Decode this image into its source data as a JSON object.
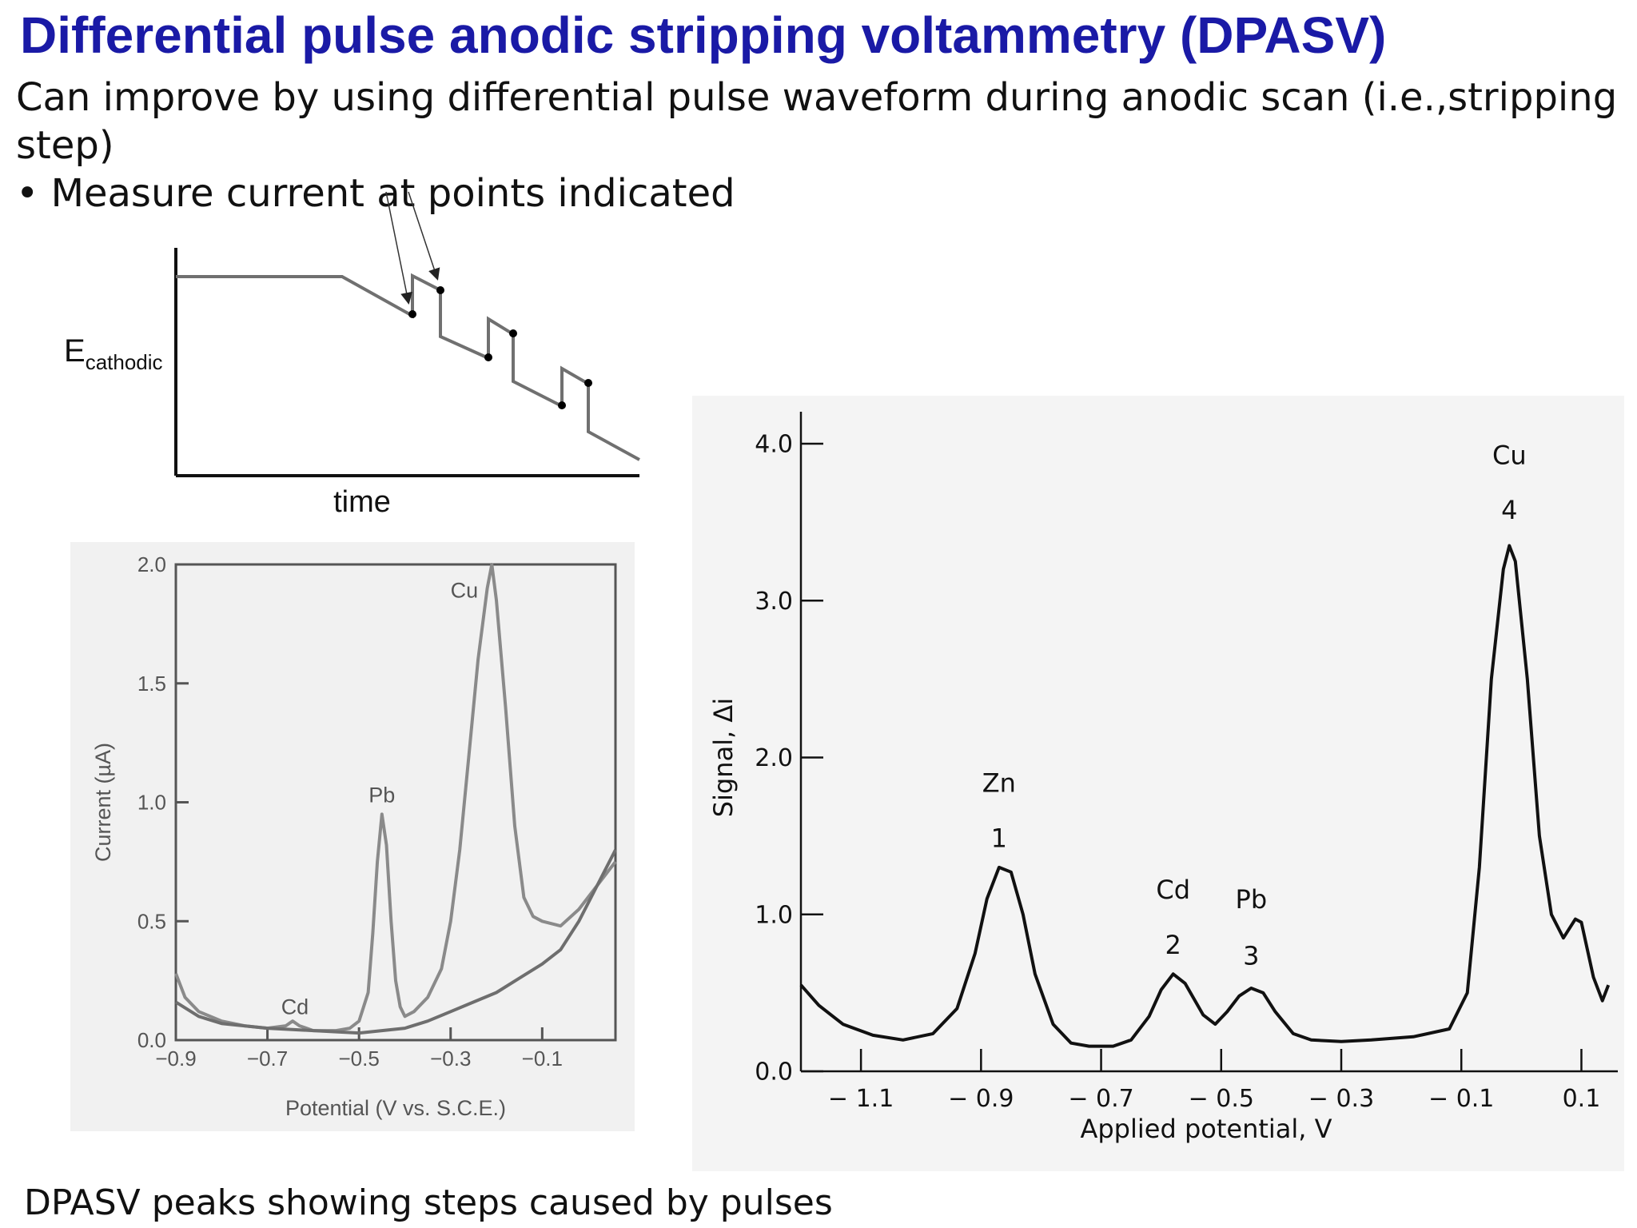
{
  "slide": {
    "title": "Differential pulse anodic stripping voltammetry (DPASV)",
    "intro": "Can improve by using differential pulse waveform during anodic scan (i.e.,stripping step)",
    "bullet": "• Measure current at points indicated",
    "caption": "DPASV peaks showing steps caused by pulses"
  },
  "waveform": {
    "ylabel_main": "E",
    "ylabel_sub": "cathodic",
    "xlabel": "time"
  },
  "chart_data": [
    {
      "type": "line",
      "ylabel": "Current (µA)",
      "xlabel": "Potential (V vs. S.C.E.)",
      "xlim": [
        -0.9,
        0.06
      ],
      "ylim": [
        0,
        2.0
      ],
      "xticks": [
        -0.9,
        -0.7,
        -0.5,
        -0.3,
        -0.1
      ],
      "xtick_labels": [
        "−0.9",
        "−0.7",
        "−0.5",
        "−0.3",
        "−0.1"
      ],
      "yticks": [
        0,
        0.5,
        1.0,
        1.5,
        2.0
      ],
      "ytick_labels": [
        "0.0",
        "0.5",
        "1.0",
        "1.5",
        "2.0"
      ],
      "grid": false,
      "series": [
        {
          "values": [
            [
              -0.9,
              0.28
            ],
            [
              -0.88,
              0.18
            ],
            [
              -0.85,
              0.12
            ],
            [
              -0.8,
              0.08
            ],
            [
              -0.75,
              0.06
            ],
            [
              -0.7,
              0.05
            ],
            [
              -0.66,
              0.06
            ],
            [
              -0.645,
              0.08
            ],
            [
              -0.63,
              0.06
            ],
            [
              -0.6,
              0.04
            ],
            [
              -0.55,
              0.04
            ],
            [
              -0.52,
              0.05
            ],
            [
              -0.5,
              0.08
            ],
            [
              -0.48,
              0.2
            ],
            [
              -0.47,
              0.45
            ],
            [
              -0.46,
              0.75
            ],
            [
              -0.45,
              0.95
            ],
            [
              -0.44,
              0.82
            ],
            [
              -0.43,
              0.5
            ],
            [
              -0.42,
              0.25
            ],
            [
              -0.41,
              0.14
            ],
            [
              -0.4,
              0.1
            ],
            [
              -0.38,
              0.12
            ],
            [
              -0.35,
              0.18
            ],
            [
              -0.32,
              0.3
            ],
            [
              -0.3,
              0.5
            ],
            [
              -0.28,
              0.8
            ],
            [
              -0.26,
              1.2
            ],
            [
              -0.24,
              1.6
            ],
            [
              -0.22,
              1.9
            ],
            [
              -0.21,
              2.0
            ],
            [
              -0.2,
              1.85
            ],
            [
              -0.18,
              1.4
            ],
            [
              -0.16,
              0.9
            ],
            [
              -0.14,
              0.6
            ],
            [
              -0.12,
              0.52
            ],
            [
              -0.1,
              0.5
            ],
            [
              -0.06,
              0.48
            ],
            [
              -0.02,
              0.55
            ],
            [
              0.02,
              0.65
            ],
            [
              0.06,
              0.75
            ]
          ]
        },
        {
          "values": [
            [
              -0.9,
              0.16
            ],
            [
              -0.85,
              0.1
            ],
            [
              -0.8,
              0.07
            ],
            [
              -0.7,
              0.05
            ],
            [
              -0.6,
              0.04
            ],
            [
              -0.5,
              0.03
            ],
            [
              -0.45,
              0.04
            ],
            [
              -0.4,
              0.05
            ],
            [
              -0.35,
              0.08
            ],
            [
              -0.3,
              0.12
            ],
            [
              -0.25,
              0.16
            ],
            [
              -0.2,
              0.2
            ],
            [
              -0.15,
              0.26
            ],
            [
              -0.1,
              0.32
            ],
            [
              -0.06,
              0.38
            ],
            [
              -0.02,
              0.5
            ],
            [
              0.02,
              0.65
            ],
            [
              0.06,
              0.8
            ]
          ]
        }
      ],
      "annotations": [
        {
          "text": "Cd",
          "x": -0.64,
          "y": 0.11
        },
        {
          "text": "Pb",
          "x": -0.45,
          "y": 1.0
        },
        {
          "text": "Cu",
          "x": -0.27,
          "y": 1.86
        }
      ]
    },
    {
      "type": "line",
      "ylabel": "Signal, Δi",
      "xlabel": "Applied potential, V",
      "xlim": [
        -1.2,
        0.15
      ],
      "ylim": [
        0,
        4.0
      ],
      "xticks": [
        -1.1,
        -0.9,
        -0.7,
        -0.5,
        -0.3,
        -0.1,
        0.1
      ],
      "xtick_labels": [
        "− 1.1",
        "− 0.9",
        "− 0.7",
        "− 0.5",
        "− 0.3",
        "− 0.1",
        "0.1"
      ],
      "yticks": [
        0,
        1.0,
        2.0,
        3.0,
        4.0
      ],
      "ytick_labels": [
        "0.0",
        "1.0",
        "2.0",
        "3.0",
        "4.0"
      ],
      "grid": false,
      "series": [
        {
          "values": [
            [
              -1.2,
              0.55
            ],
            [
              -1.17,
              0.42
            ],
            [
              -1.13,
              0.3
            ],
            [
              -1.08,
              0.23
            ],
            [
              -1.03,
              0.2
            ],
            [
              -0.98,
              0.24
            ],
            [
              -0.94,
              0.4
            ],
            [
              -0.91,
              0.75
            ],
            [
              -0.89,
              1.1
            ],
            [
              -0.87,
              1.3
            ],
            [
              -0.85,
              1.27
            ],
            [
              -0.83,
              1.0
            ],
            [
              -0.81,
              0.62
            ],
            [
              -0.78,
              0.3
            ],
            [
              -0.75,
              0.18
            ],
            [
              -0.72,
              0.16
            ],
            [
              -0.68,
              0.16
            ],
            [
              -0.65,
              0.2
            ],
            [
              -0.62,
              0.35
            ],
            [
              -0.6,
              0.52
            ],
            [
              -0.58,
              0.62
            ],
            [
              -0.56,
              0.56
            ],
            [
              -0.53,
              0.36
            ],
            [
              -0.51,
              0.3
            ],
            [
              -0.49,
              0.38
            ],
            [
              -0.47,
              0.48
            ],
            [
              -0.45,
              0.53
            ],
            [
              -0.43,
              0.5
            ],
            [
              -0.41,
              0.38
            ],
            [
              -0.38,
              0.24
            ],
            [
              -0.35,
              0.2
            ],
            [
              -0.3,
              0.19
            ],
            [
              -0.25,
              0.2
            ],
            [
              -0.18,
              0.22
            ],
            [
              -0.12,
              0.27
            ],
            [
              -0.09,
              0.5
            ],
            [
              -0.07,
              1.3
            ],
            [
              -0.05,
              2.5
            ],
            [
              -0.03,
              3.2
            ],
            [
              -0.02,
              3.35
            ],
            [
              -0.01,
              3.25
            ],
            [
              0.01,
              2.5
            ],
            [
              0.03,
              1.5
            ],
            [
              0.05,
              1.0
            ],
            [
              0.07,
              0.85
            ],
            [
              0.09,
              0.97
            ],
            [
              0.1,
              0.95
            ],
            [
              0.12,
              0.6
            ],
            [
              0.135,
              0.45
            ],
            [
              0.145,
              0.55
            ]
          ]
        }
      ],
      "annotations": [
        {
          "text": "Zn",
          "x": -0.87,
          "y": 1.78
        },
        {
          "text": "1",
          "x": -0.87,
          "y": 1.43
        },
        {
          "text": "Cd",
          "x": -0.58,
          "y": 1.1
        },
        {
          "text": "2",
          "x": -0.58,
          "y": 0.75
        },
        {
          "text": "Pb",
          "x": -0.45,
          "y": 1.04
        },
        {
          "text": "3",
          "x": -0.45,
          "y": 0.68
        },
        {
          "text": "Cu",
          "x": -0.02,
          "y": 3.87
        },
        {
          "text": "4",
          "x": -0.02,
          "y": 3.52
        }
      ]
    }
  ]
}
